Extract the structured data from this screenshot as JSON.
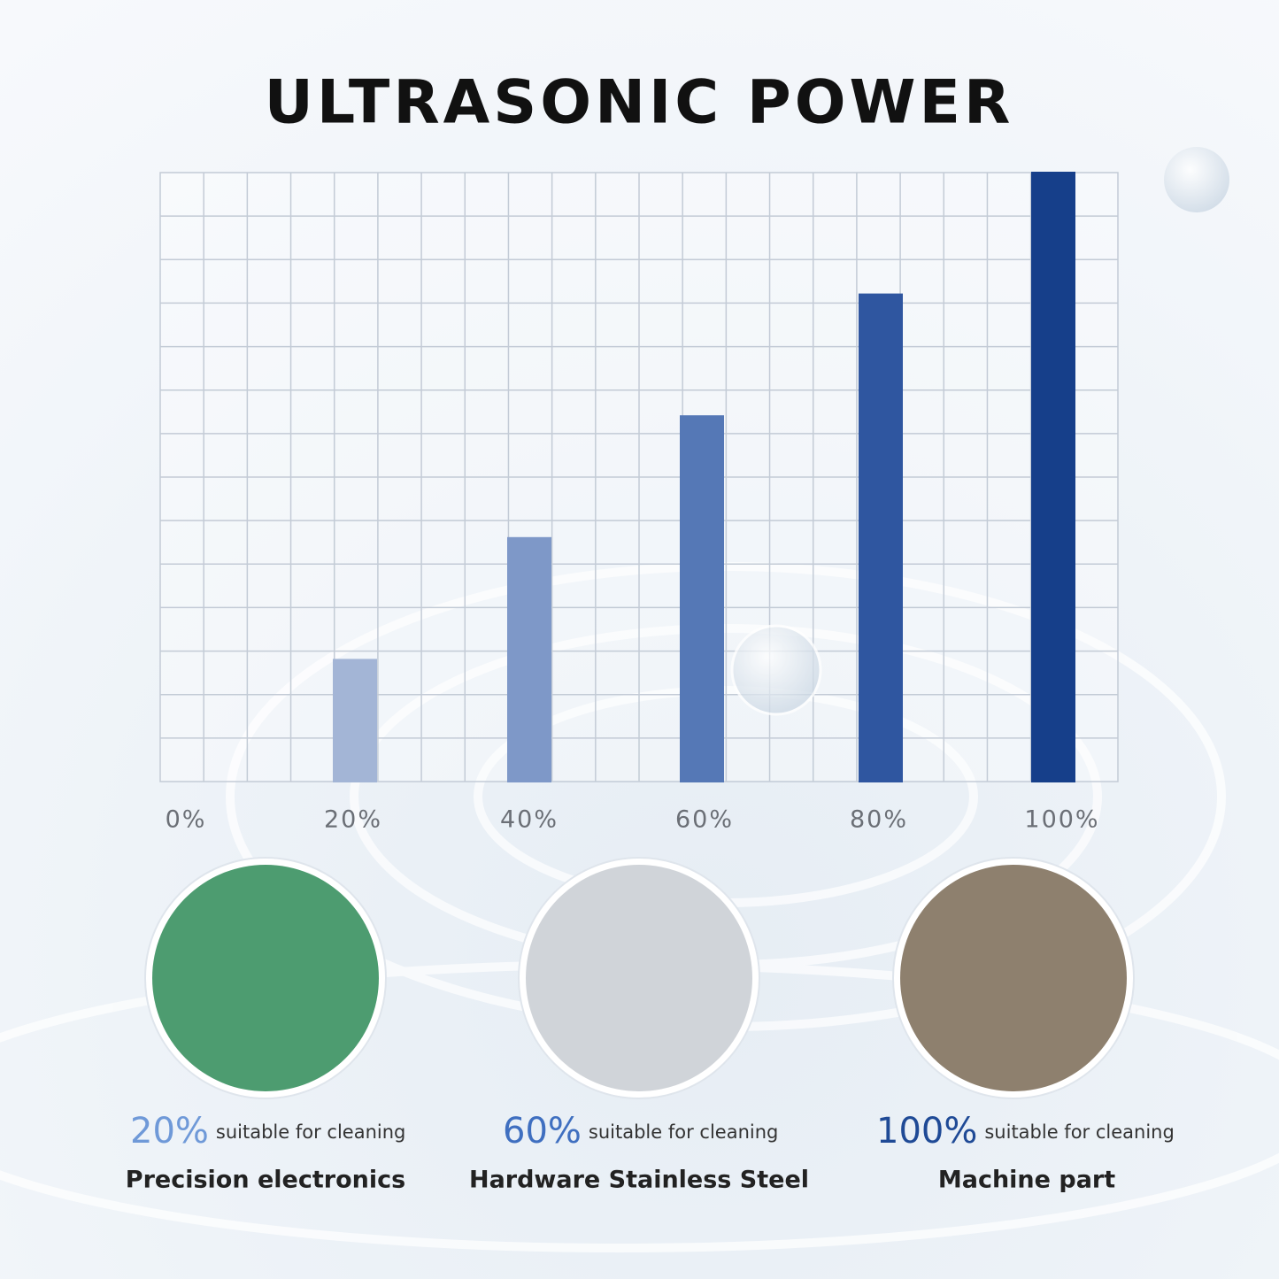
{
  "chart_data": {
    "type": "bar",
    "title": "ULTRASONIC POWER",
    "categories": [
      "0%",
      "20%",
      "40%",
      "60%",
      "80%",
      "100%"
    ],
    "values": [
      0,
      20,
      40,
      60,
      80,
      100
    ],
    "colors": [
      "#8fa6cc",
      "#a3b5d6",
      "#7e98c8",
      "#5578b6",
      "#2f56a0",
      "#163f8a"
    ],
    "ylim": [
      0,
      100
    ],
    "grid": true
  },
  "cards": [
    {
      "percent": "20%",
      "note": "suitable for cleaning",
      "label": "Precision electronics",
      "color": "#6f99d8"
    },
    {
      "percent": "60%",
      "note": "suitable for cleaning",
      "label": "Hardware Stainless Steel",
      "color": "#3f6fc0"
    },
    {
      "percent": "100%",
      "note": "suitable for cleaning",
      "label": "Machine part",
      "color": "#1f4a96"
    }
  ]
}
